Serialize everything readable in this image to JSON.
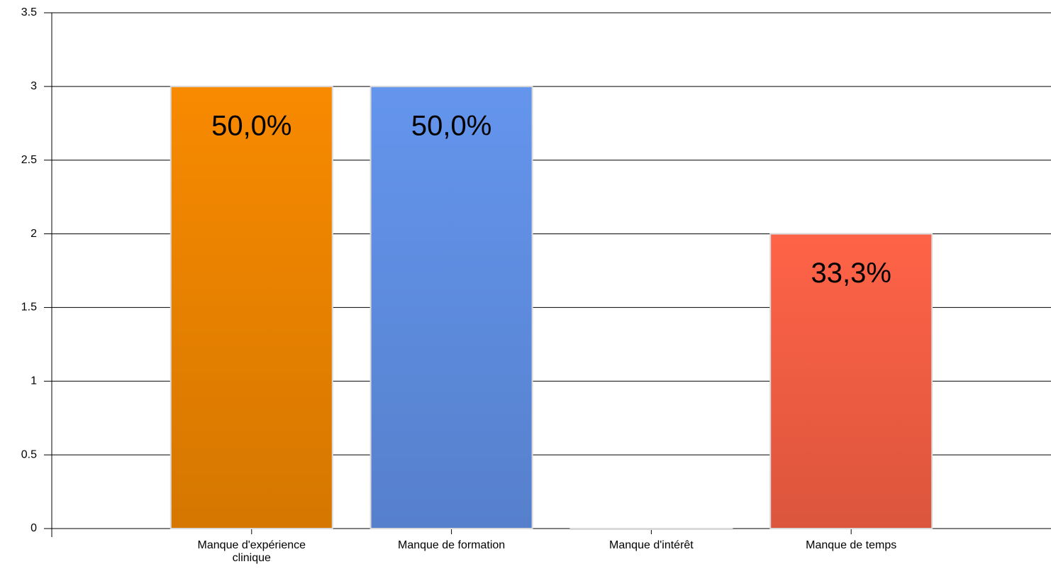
{
  "chart_data": {
    "type": "bar",
    "categories": [
      "Manque d'expérience clinique",
      "Manque de formation",
      "Manque d'intérêt",
      "Manque de temps"
    ],
    "values": [
      3,
      3,
      0,
      2
    ],
    "value_labels": [
      "50,0%",
      "50,0%",
      null,
      "33,3%"
    ],
    "colors": [
      "#f88a00",
      "#6495ed",
      "#c8c8c8",
      "#ff6347"
    ],
    "ylim": [
      0,
      3.5
    ],
    "yticks": [
      0,
      0.5,
      1,
      1.5,
      2,
      2.5,
      3,
      3.5
    ],
    "grid": true
  }
}
